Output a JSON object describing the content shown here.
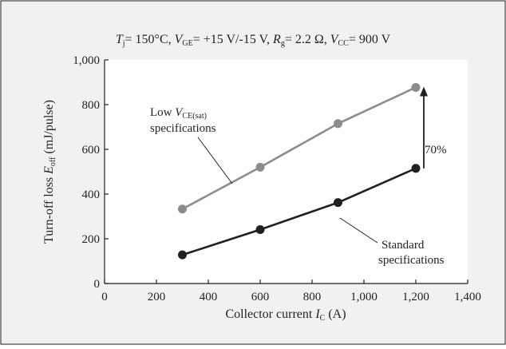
{
  "chart_data": {
    "type": "line",
    "title": {
      "tj": "T",
      "tj_sub": "j",
      "tj_val": "= 150°C, ",
      "vge": "V",
      "vge_sub": "GE",
      "vge_val": "= +15 V/-15 V, ",
      "rg": "R",
      "rg_sub": "g",
      "rg_val": "= 2.2 Ω, ",
      "vcc": "V",
      "vcc_sub": "CC",
      "vcc_val": "= 900 V"
    },
    "xlabel": {
      "text": "Collector current ",
      "var": "I",
      "sub": "C",
      "unit": " (A)"
    },
    "ylabel": {
      "text": "Turn-off loss ",
      "var": "E",
      "sub": "off",
      "unit": " (mJ/pulse)"
    },
    "xlim": [
      0,
      1400
    ],
    "ylim": [
      0,
      1000
    ],
    "x_ticks": [
      {
        "value": 0,
        "label": "0"
      },
      {
        "value": 200,
        "label": "200"
      },
      {
        "value": 400,
        "label": "400"
      },
      {
        "value": 600,
        "label": "600"
      },
      {
        "value": 800,
        "label": "800"
      },
      {
        "value": 1000,
        "label": "1,000"
      },
      {
        "value": 1200,
        "label": "1,200"
      },
      {
        "value": 1400,
        "label": "1,400"
      }
    ],
    "y_ticks": [
      {
        "value": 0,
        "label": "0"
      },
      {
        "value": 200,
        "label": "200"
      },
      {
        "value": 400,
        "label": "400"
      },
      {
        "value": 600,
        "label": "600"
      },
      {
        "value": 800,
        "label": "800"
      },
      {
        "value": 1000,
        "label": "1,000"
      }
    ],
    "series": [
      {
        "key": "low",
        "label_line1_pre": "Low ",
        "label_var": "V",
        "label_sub": "CE(sat)",
        "label_line2": "specifications",
        "color": "#8c8c8c",
        "x": [
          300,
          600,
          900,
          1200
        ],
        "y": [
          333,
          520,
          715,
          877
        ]
      },
      {
        "key": "std",
        "label_line1": "Standard",
        "label_line2": "specifications",
        "color": "#231f20",
        "x": [
          300,
          600,
          900,
          1200
        ],
        "y": [
          128,
          241,
          362,
          515
        ]
      }
    ],
    "annotation": {
      "text": "70%"
    },
    "grid": false,
    "legend": "none"
  },
  "colors": {
    "panel_bg": "#f1f1f2",
    "panel_border": "#231f20",
    "plot_bg": "#ffffff"
  }
}
